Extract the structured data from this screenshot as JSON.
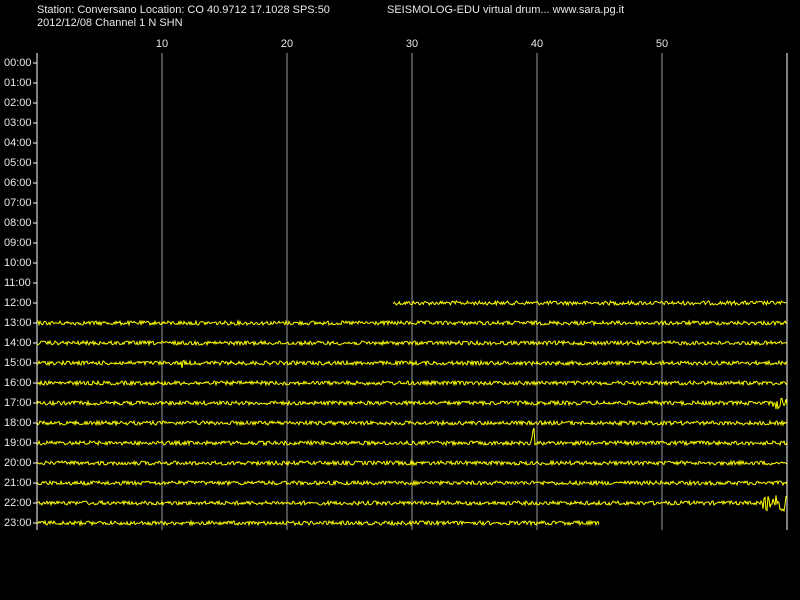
{
  "chart_data": {
    "type": "drum",
    "title": "Station: Conversano Location: CO 40.9712 17.1028 SPS:50",
    "subtitle": "SEISMOLOG-EDU virtual drum... www.sara.pg.it",
    "date_channel": "2012/12/08  Channel 1 N SHN",
    "xlim": [
      0,
      60
    ],
    "xticks": [
      10,
      20,
      30,
      40,
      50
    ],
    "grid": true,
    "color": "#ffff00",
    "categories": [
      "00:00",
      "01:00",
      "02:00",
      "03:00",
      "04:00",
      "05:00",
      "06:00",
      "07:00",
      "08:00",
      "09:00",
      "10:00",
      "11:00",
      "12:00",
      "13:00",
      "14:00",
      "15:00",
      "16:00",
      "17:00",
      "18:00",
      "19:00",
      "20:00",
      "21:00",
      "22:00",
      "23:00"
    ],
    "trace_start": [
      null,
      null,
      null,
      null,
      null,
      null,
      null,
      null,
      null,
      null,
      null,
      null,
      28.5,
      0,
      0,
      0,
      0,
      0,
      0,
      0,
      0,
      0,
      0,
      0
    ],
    "trace_end": [
      null,
      null,
      null,
      null,
      null,
      null,
      null,
      null,
      null,
      null,
      null,
      null,
      60,
      60,
      60,
      60,
      60,
      60,
      60,
      60,
      60,
      60,
      60,
      45
    ]
  }
}
